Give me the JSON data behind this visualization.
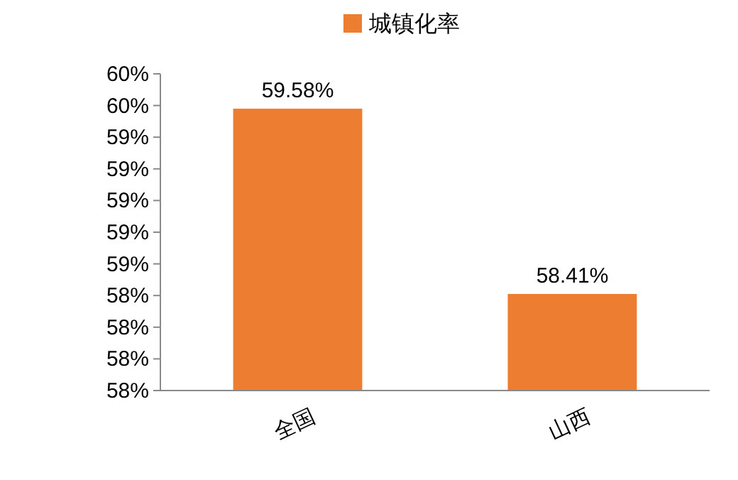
{
  "chart_data": {
    "type": "bar",
    "categories": [
      "全国",
      "山西"
    ],
    "series": [
      {
        "name": "城镇化率",
        "color": "#ed7d31",
        "values": [
          59.58,
          58.41
        ],
        "value_labels": [
          "59.58%",
          "58.41%"
        ]
      }
    ],
    "ylim": [
      57.8,
      59.8
    ],
    "yticks": [
      {
        "value": 57.8,
        "label": "58%"
      },
      {
        "value": 58.0,
        "label": "58%"
      },
      {
        "value": 58.2,
        "label": "58%"
      },
      {
        "value": 58.4,
        "label": "58%"
      },
      {
        "value": 58.6,
        "label": "59%"
      },
      {
        "value": 58.8,
        "label": "59%"
      },
      {
        "value": 59.0,
        "label": "59%"
      },
      {
        "value": 59.2,
        "label": "59%"
      },
      {
        "value": 59.4,
        "label": "59%"
      },
      {
        "value": 59.6,
        "label": "60%"
      },
      {
        "value": 59.8,
        "label": "60%"
      }
    ],
    "legend": "top",
    "grid": false
  }
}
